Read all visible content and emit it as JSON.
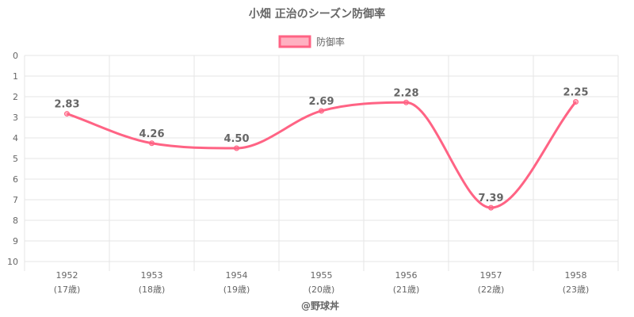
{
  "chart_data": {
    "type": "line",
    "title": "小畑 正治のシーズン防御率",
    "legend": {
      "label": "防御率",
      "position": "top"
    },
    "x": [
      "1952",
      "1953",
      "1954",
      "1955",
      "1956",
      "1957",
      "1958"
    ],
    "x_sublabels": [
      "(17歳)",
      "(18歳)",
      "(19歳)",
      "(20歳)",
      "(21歳)",
      "(22歳)",
      "(23歳)"
    ],
    "series": [
      {
        "name": "防御率",
        "values": [
          2.83,
          4.26,
          4.5,
          2.69,
          2.28,
          7.39,
          2.25
        ]
      }
    ],
    "data_labels": [
      "2.83",
      "4.26",
      "4.50",
      "2.69",
      "2.28",
      "7.39",
      "2.25"
    ],
    "ylim": [
      0,
      10
    ],
    "y_reversed": true,
    "y_ticks": [
      0,
      1,
      2,
      3,
      4,
      5,
      6,
      7,
      8,
      9,
      10
    ],
    "grid": true,
    "colors": {
      "line": "#ff6384",
      "fill": "rgba(255,99,132,0.5)",
      "grid": "#e6e6e6",
      "text": "#666666"
    }
  },
  "credit": "@野球丼"
}
